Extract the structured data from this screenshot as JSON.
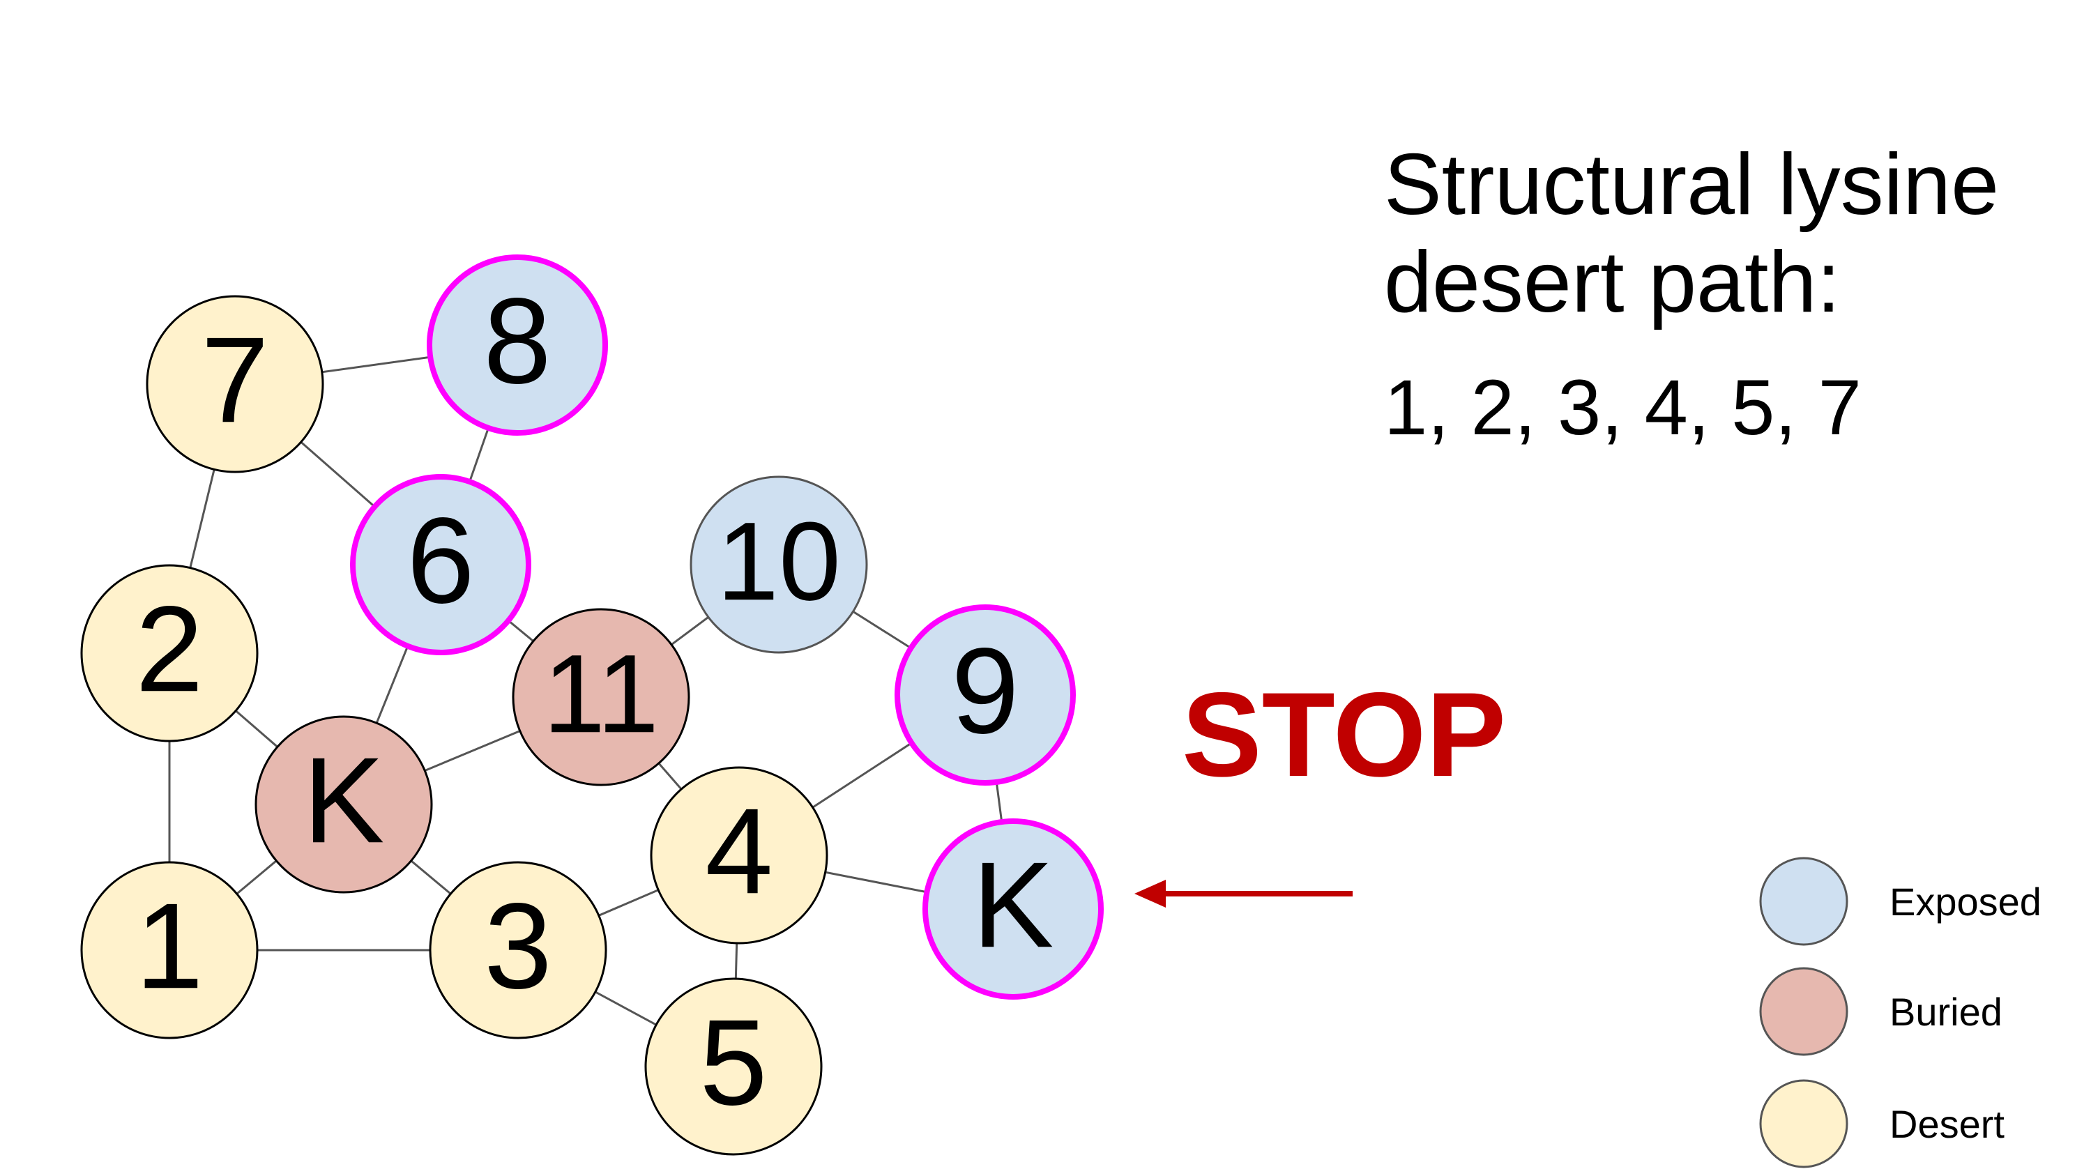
{
  "title": {
    "line1": "Structural lysine",
    "line2": "desert path:"
  },
  "path_list": "1, 2, 3, 4, 5, 7",
  "stop_label": "STOP",
  "colors": {
    "exposed": "#cfe0f1",
    "buried": "#e6b8af",
    "desert": "#fff2cc",
    "highlight_ring": "#ff00ff",
    "arrow": "#c00000",
    "edge": "#555555"
  },
  "legend": [
    {
      "label": "Exposed",
      "category": "exposed"
    },
    {
      "label": "Buried",
      "category": "buried"
    },
    {
      "label": "Desert",
      "category": "desert"
    }
  ],
  "nodes": [
    {
      "id": "n7",
      "label": "7",
      "category": "desert",
      "highlight": false
    },
    {
      "id": "n8",
      "label": "8",
      "category": "exposed",
      "highlight": true
    },
    {
      "id": "n6",
      "label": "6",
      "category": "exposed",
      "highlight": true
    },
    {
      "id": "n2",
      "label": "2",
      "category": "desert",
      "highlight": false
    },
    {
      "id": "nK1",
      "label": "K",
      "category": "buried",
      "highlight": false
    },
    {
      "id": "n11",
      "label": "11",
      "category": "buried",
      "highlight": false
    },
    {
      "id": "n10",
      "label": "10",
      "category": "exposed",
      "highlight": false
    },
    {
      "id": "n9",
      "label": "9",
      "category": "exposed",
      "highlight": true
    },
    {
      "id": "n4",
      "label": "4",
      "category": "desert",
      "highlight": false
    },
    {
      "id": "nK2",
      "label": "K",
      "category": "exposed",
      "highlight": true
    },
    {
      "id": "n1",
      "label": "1",
      "category": "desert",
      "highlight": false
    },
    {
      "id": "n3",
      "label": "3",
      "category": "desert",
      "highlight": false
    },
    {
      "id": "n5",
      "label": "5",
      "category": "desert",
      "highlight": false
    }
  ],
  "edges": [
    [
      "n7",
      "n8"
    ],
    [
      "n7",
      "n6"
    ],
    [
      "n7",
      "n2"
    ],
    [
      "n8",
      "n6"
    ],
    [
      "n6",
      "nK1"
    ],
    [
      "n6",
      "n11"
    ],
    [
      "n2",
      "nK1"
    ],
    [
      "n2",
      "n1"
    ],
    [
      "nK1",
      "n11"
    ],
    [
      "nK1",
      "n1"
    ],
    [
      "nK1",
      "n3"
    ],
    [
      "n11",
      "n10"
    ],
    [
      "n11",
      "n4"
    ],
    [
      "n10",
      "n9"
    ],
    [
      "n9",
      "n4"
    ],
    [
      "n9",
      "nK2"
    ],
    [
      "n4",
      "nK2"
    ],
    [
      "n4",
      "n3"
    ],
    [
      "n4",
      "n5"
    ],
    [
      "n1",
      "n3"
    ],
    [
      "n3",
      "n5"
    ]
  ]
}
